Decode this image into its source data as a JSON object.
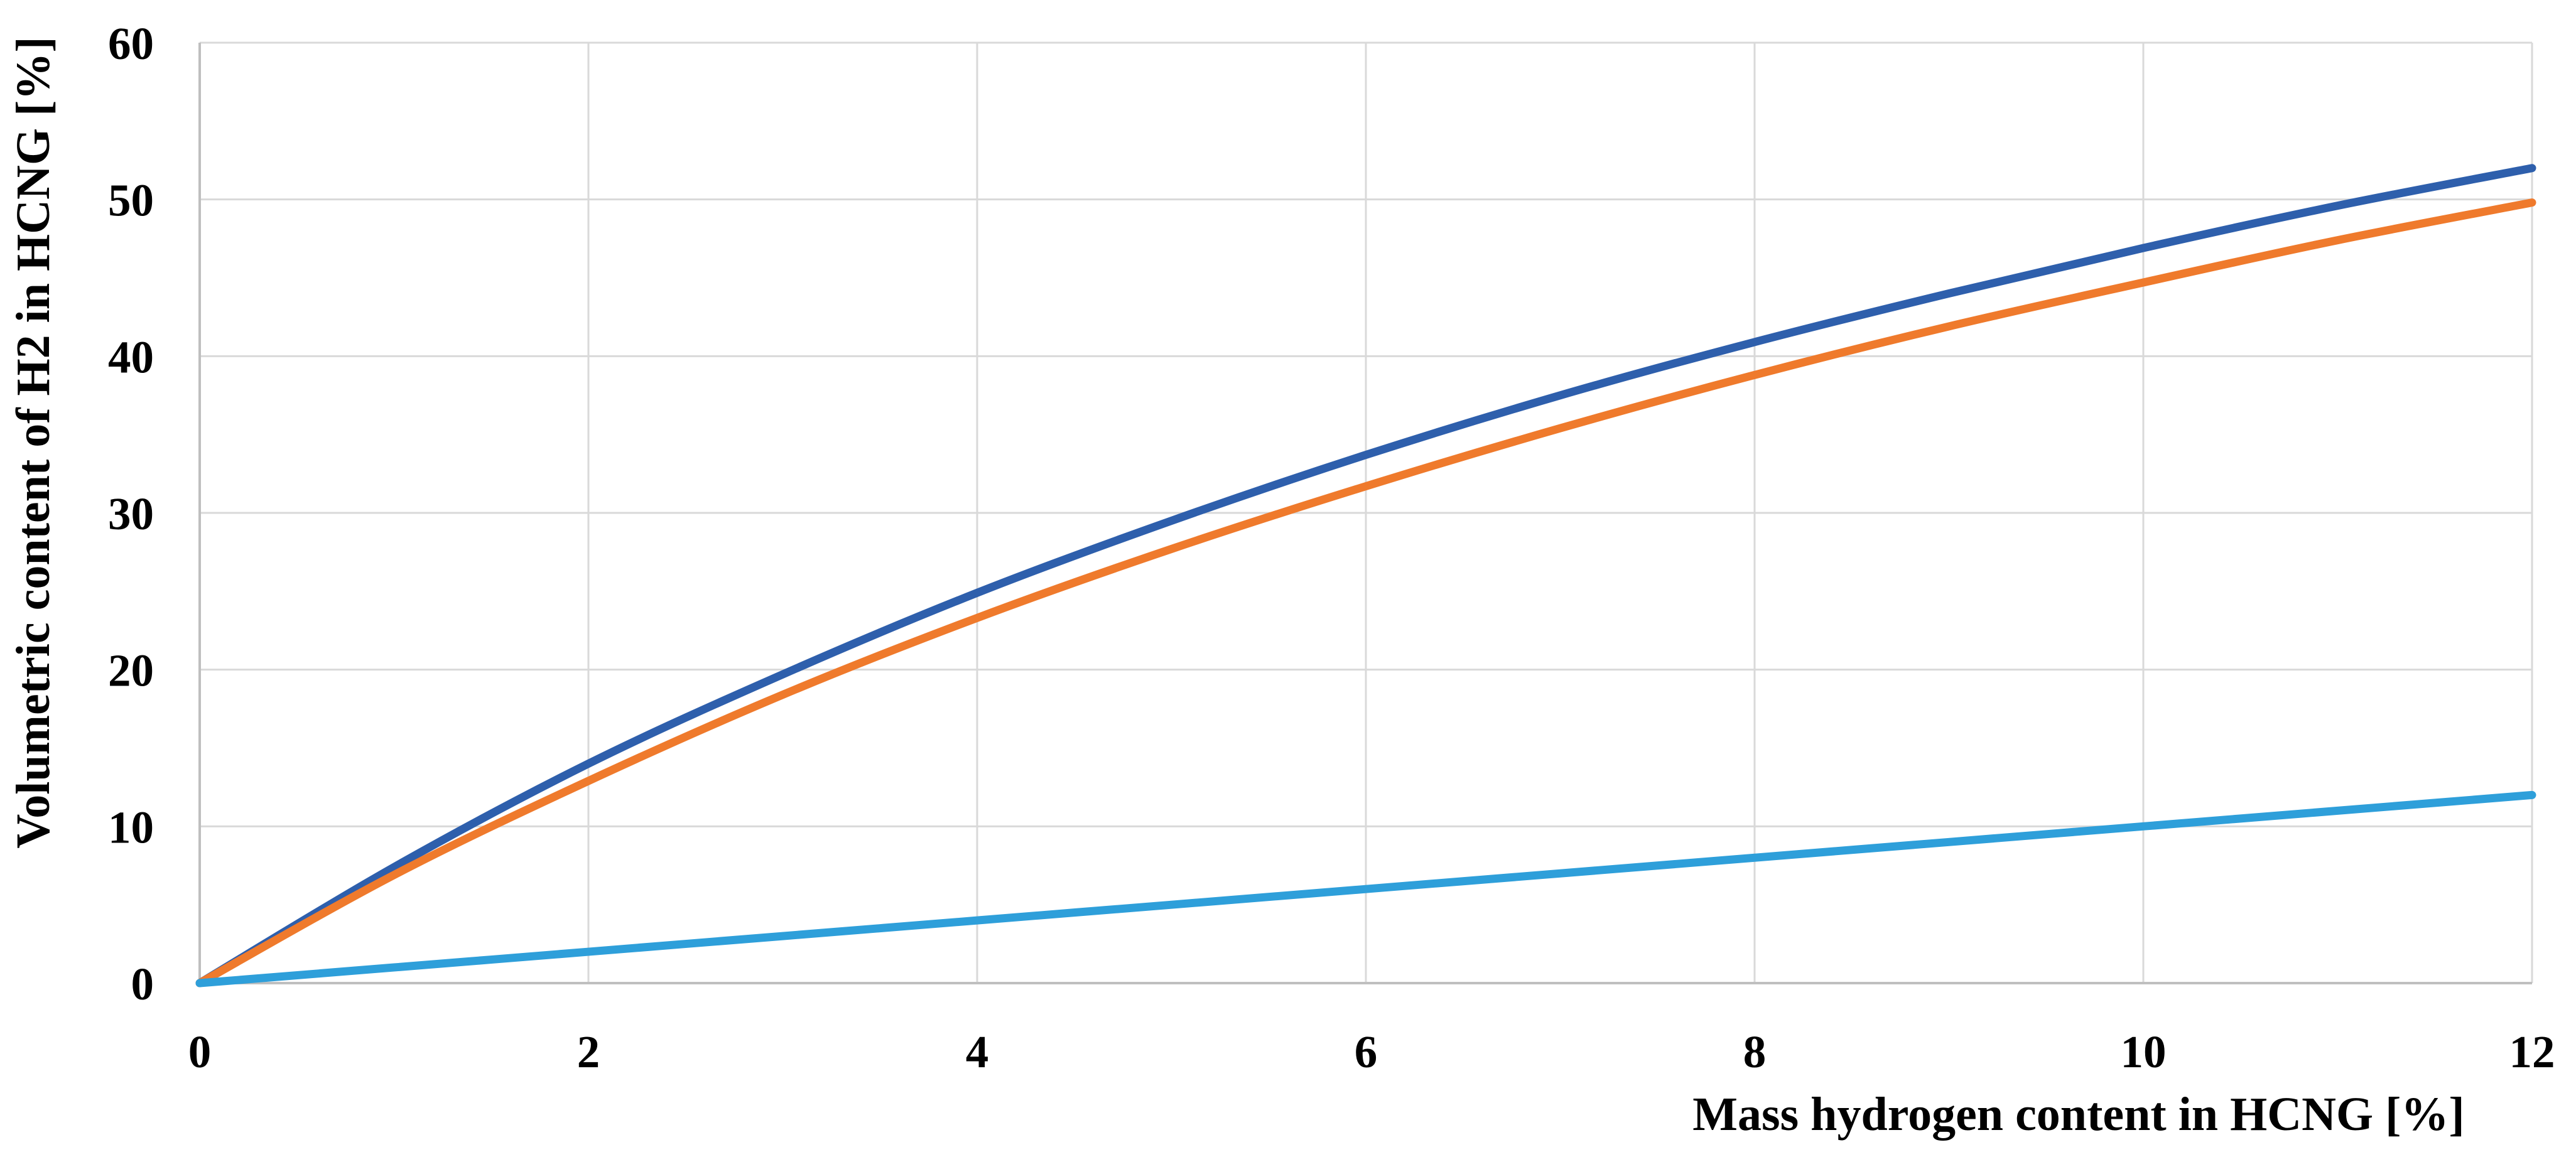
{
  "chart_data": {
    "type": "line",
    "title": "",
    "xlabel": "Mass hydrogen content in HCNG [%]",
    "ylabel": "Volumetric content of H2 in HCNG [%]",
    "xlim": [
      0,
      12
    ],
    "ylim": [
      0,
      60
    ],
    "x_ticks": [
      0,
      2,
      4,
      6,
      8,
      10,
      12
    ],
    "y_ticks": [
      0,
      10,
      20,
      30,
      40,
      50,
      60
    ],
    "grid": true,
    "legend": "none",
    "x": [
      0,
      1,
      2,
      3,
      4,
      5,
      6,
      7,
      8,
      9,
      10,
      11,
      12
    ],
    "series": [
      {
        "name": "dark-blue-curve",
        "color": "#2E5FAC",
        "values": [
          0,
          7.4,
          14.0,
          19.7,
          24.9,
          29.5,
          33.7,
          37.5,
          40.9,
          44.0,
          46.9,
          49.6,
          52.0
        ]
      },
      {
        "name": "orange-curve",
        "color": "#EF7A2C",
        "values": [
          0,
          6.9,
          12.9,
          18.4,
          23.3,
          27.7,
          31.7,
          35.4,
          38.8,
          41.9,
          44.7,
          47.4,
          49.8
        ]
      },
      {
        "name": "light-blue-line",
        "color": "#2E9FDA",
        "values": [
          0,
          1,
          2,
          3,
          4,
          5,
          6,
          7,
          8,
          9,
          10,
          11,
          12
        ]
      }
    ],
    "colors": {
      "gridline": "#D9D9D9",
      "axis_line": "#BFBFBF",
      "text": "#000000",
      "background": "#FFFFFF"
    }
  }
}
